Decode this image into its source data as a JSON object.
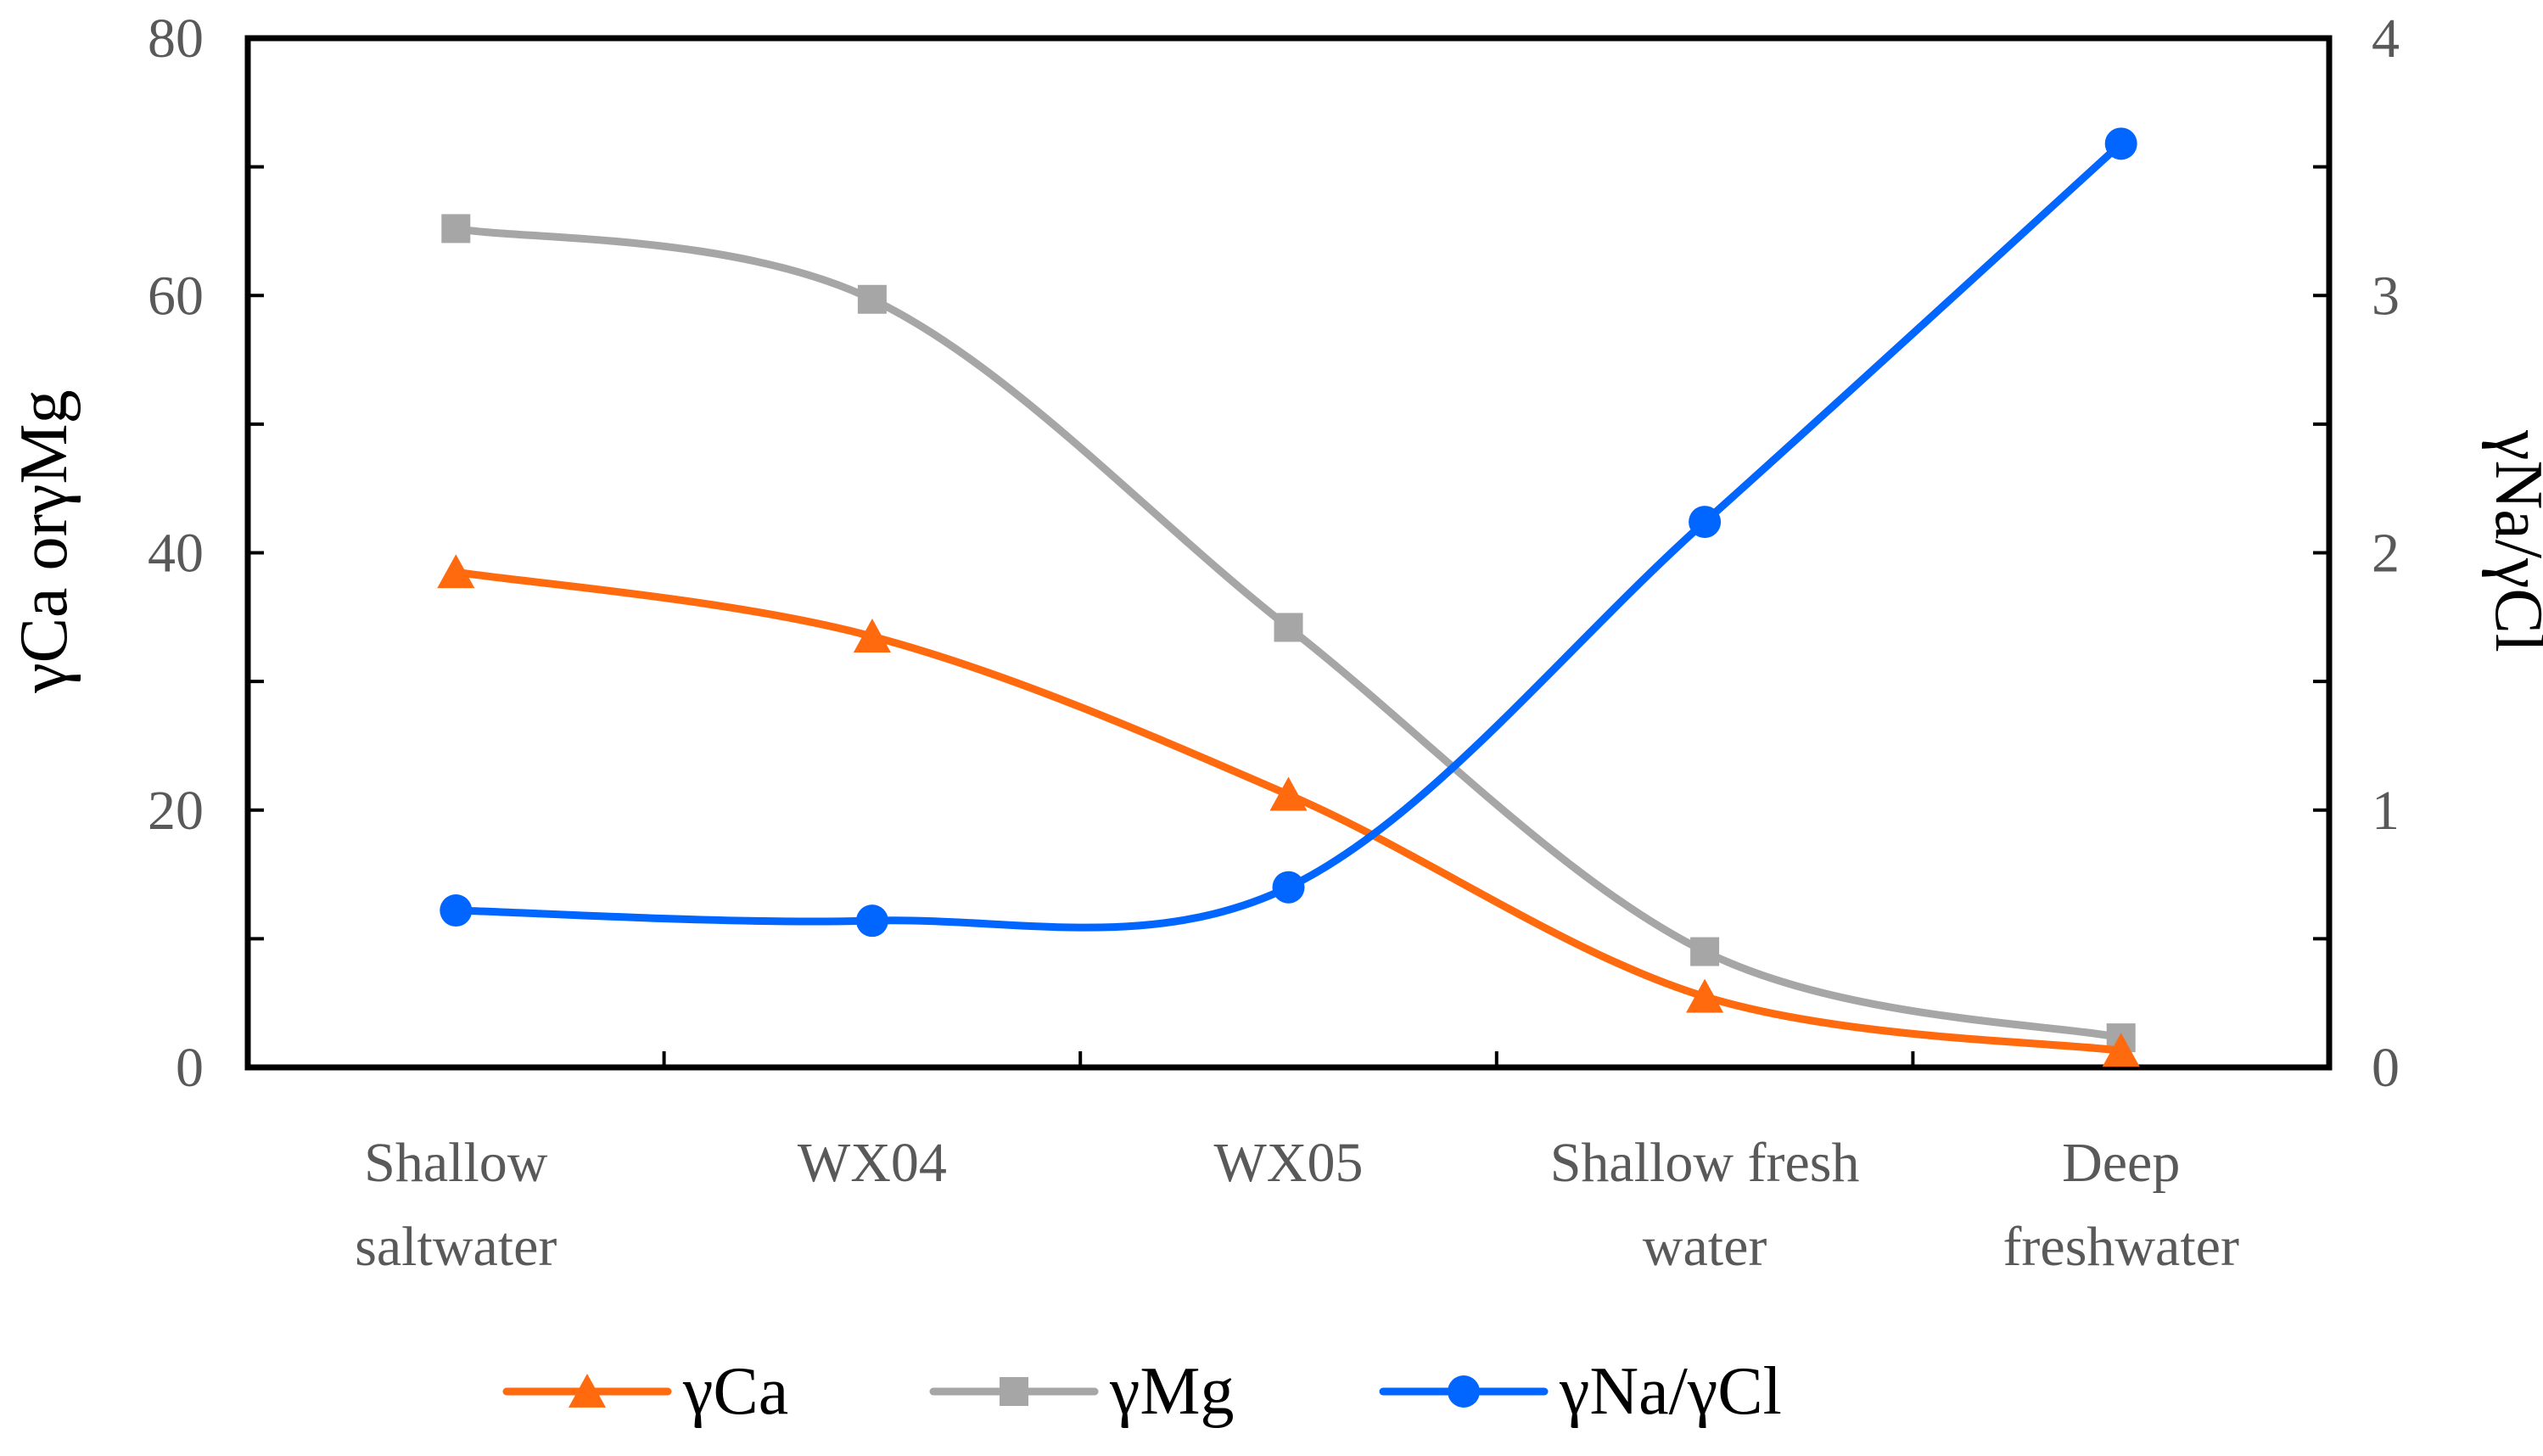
{
  "chart_data": {
    "type": "line",
    "categories": [
      [
        "Shallow",
        "saltwater"
      ],
      [
        "WX04"
      ],
      [
        "WX05"
      ],
      [
        "Shallow fresh",
        "water"
      ],
      [
        "Deep",
        "freshwater"
      ]
    ],
    "ylabel_left": "γCa orγMg",
    "ylabel_right": "γNa/γCl",
    "ylim_left": [
      0,
      80
    ],
    "ylim_right": [
      0,
      4
    ],
    "yticks_left": [
      "0",
      "20",
      "40",
      "60",
      "80"
    ],
    "yticks_right": [
      "0",
      "1",
      "2",
      "3",
      "4"
    ],
    "grid": false,
    "legend_position": "bottom",
    "series": [
      {
        "name": "γCa",
        "axis": "left",
        "marker": "triangle",
        "color": "#FF6A0F",
        "values": [
          38.5,
          33.5,
          21.2,
          5.5,
          1.3
        ]
      },
      {
        "name": "γMg",
        "axis": "left",
        "marker": "square",
        "color": "#A6A6A6",
        "values": [
          65.2,
          59.7,
          34.2,
          9.0,
          2.3
        ]
      },
      {
        "name": "γNa/γCl",
        "axis": "right",
        "marker": "circle",
        "color": "#0066FF",
        "values": [
          0.61,
          0.57,
          0.7,
          2.12,
          3.59
        ]
      }
    ]
  }
}
